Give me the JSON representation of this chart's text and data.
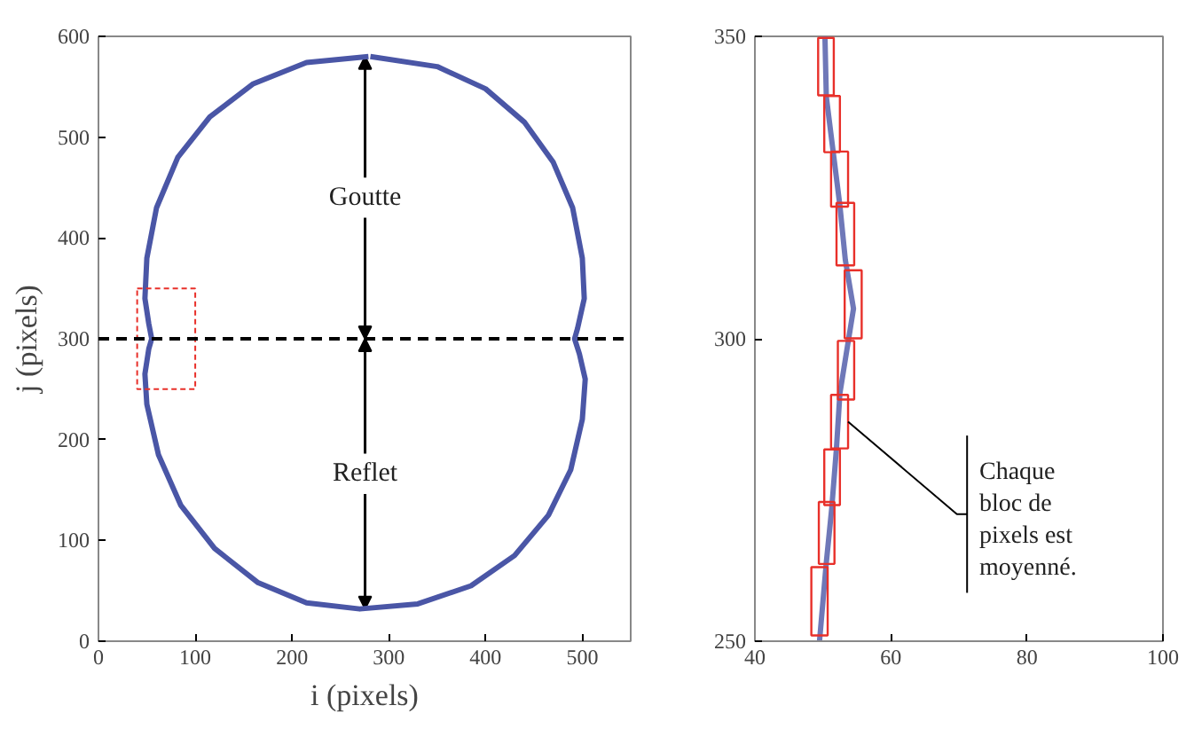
{
  "chart_data": [
    {
      "type": "line",
      "xlabel": "i (pixels)",
      "ylabel": "j (pixels)",
      "xlim": [
        0,
        550
      ],
      "xticks": [
        0,
        100,
        200,
        300,
        400,
        500
      ],
      "ylim": [
        0,
        600
      ],
      "yticks": [
        0,
        100,
        200,
        300,
        400,
        500,
        600
      ],
      "series": [
        {
          "color": "#4a56a6",
          "x": [
            281,
            350,
            400,
            440,
            470,
            490,
            500,
            502,
            495,
            492,
            497,
            503,
            500,
            488,
            465,
            430,
            385,
            330,
            270,
            215,
            165,
            120,
            85,
            62,
            50,
            48,
            52,
            55,
            52,
            48,
            50,
            60,
            82,
            115,
            160,
            215,
            279
          ],
          "values": [
            580,
            570,
            548,
            515,
            475,
            430,
            380,
            340,
            310,
            300,
            285,
            260,
            220,
            170,
            125,
            85,
            55,
            37,
            32,
            38,
            58,
            92,
            135,
            185,
            235,
            265,
            290,
            300,
            315,
            340,
            380,
            430,
            480,
            520,
            553,
            574,
            580
          ]
        }
      ],
      "ref_lines": [
        {
          "axis": "y",
          "value": 300,
          "color": "#000000",
          "line_style": "dashed"
        }
      ],
      "annotations": [
        "Goutte",
        "Reflet"
      ]
    },
    {
      "type": "bar",
      "orientation": "horizontal",
      "xlim": [
        40,
        100
      ],
      "xticks": [
        40,
        60,
        80,
        100
      ],
      "ylim": [
        250,
        350
      ],
      "yticks": [
        250,
        300,
        350
      ],
      "series": [
        {
          "type": "line",
          "color": "#6f78b8",
          "x": [
            350,
            340,
            331,
            322,
            313,
            305,
            298,
            291,
            282,
            272,
            263,
            250
          ],
          "values": [
            50.3,
            50.5,
            51.5,
            52.5,
            53.3,
            54.5,
            53.5,
            52.5,
            52,
            51.3,
            50.5,
            49.5
          ]
        },
        {
          "color": "#e8302a",
          "x": [
            345,
            335.5,
            326.4,
            317.3,
            305.7,
            294.8,
            286.3,
            277.1,
            267.9,
            256.6
          ],
          "base": [
            49.3,
            50.2,
            51.2,
            52.0,
            53.2,
            52.2,
            51.2,
            50.2,
            49.4,
            48.3
          ],
          "values": [
            2.3,
            2.3,
            2.5,
            2.6,
            2.5,
            2.4,
            2.5,
            2.3,
            2.3,
            2.4
          ]
        }
      ],
      "annotations": [
        {
          "text": "Chaque bloc de pixels est moyenné.",
          "x": 53.7,
          "y": 286.3
        }
      ]
    }
  ]
}
